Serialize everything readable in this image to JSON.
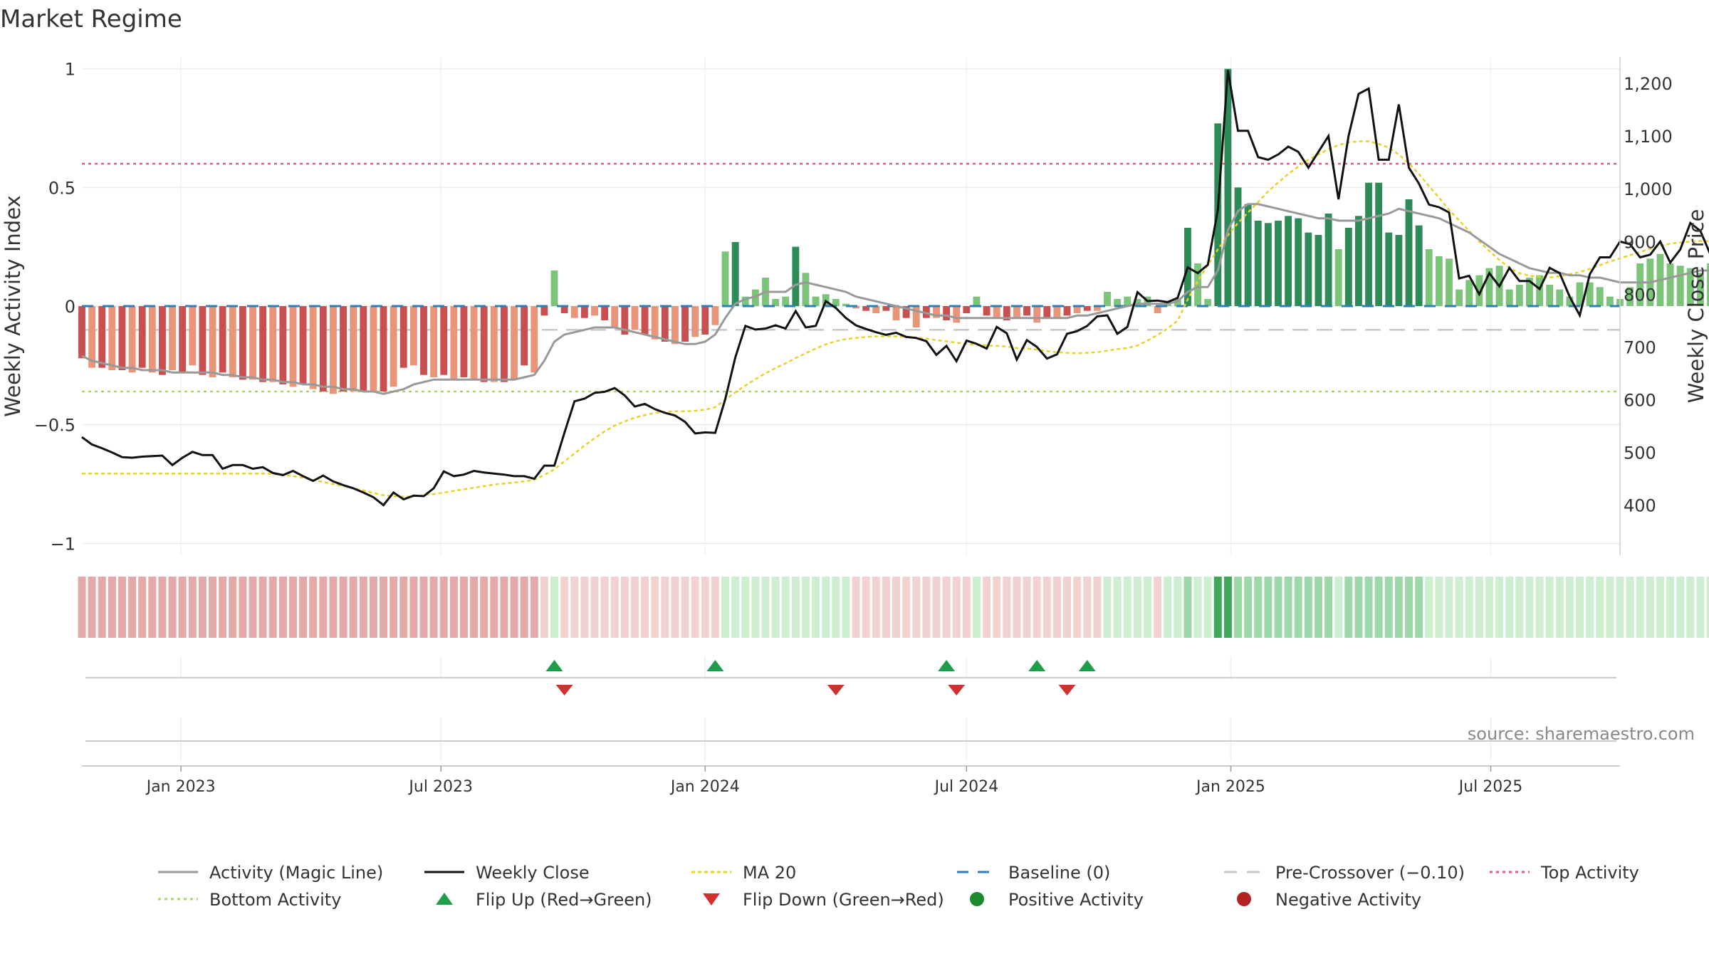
{
  "chart_data": {
    "type": "bar",
    "title": "Market Regime",
    "source": "source: sharemaestro.com",
    "y_left_label": "Weekly Activity Index",
    "y_right_label": "Weekly Close Price",
    "y_left_range": [
      -1.05,
      1.05
    ],
    "y_right_range": [
      305,
      1250
    ],
    "y_left_ticks": [
      {
        "v": 1,
        "t": "1"
      },
      {
        "v": 0.5,
        "t": "0.5"
      },
      {
        "v": 0,
        "t": "0"
      },
      {
        "v": -0.5,
        "t": "−0.5"
      },
      {
        "v": -1,
        "t": "−1"
      }
    ],
    "y_right_ticks": [
      {
        "v": 1200,
        "t": "1,200"
      },
      {
        "v": 1100,
        "t": "1,100"
      },
      {
        "v": 1000,
        "t": "1,000"
      },
      {
        "v": 900,
        "t": "900"
      },
      {
        "v": 800,
        "t": "800"
      },
      {
        "v": 700,
        "t": "700"
      },
      {
        "v": 600,
        "t": "600"
      },
      {
        "v": 500,
        "t": "500"
      },
      {
        "v": 400,
        "t": "400"
      }
    ],
    "x_range": [
      "2022-10-24",
      "2025-09-29"
    ],
    "x_ticks": [
      {
        "date": "2023-01-01",
        "label": "Jan 2023"
      },
      {
        "date": "2023-07-01",
        "label": "Jul 2023"
      },
      {
        "date": "2024-01-01",
        "label": "Jan 2024"
      },
      {
        "date": "2024-07-01",
        "label": "Jul 2024"
      },
      {
        "date": "2025-01-01",
        "label": "Jan 2025"
      },
      {
        "date": "2025-07-01",
        "label": "Jul 2025"
      }
    ],
    "start_date": "2022-10-24",
    "weekly_activity": [
      -0.22,
      -0.26,
      -0.26,
      -0.27,
      -0.27,
      -0.28,
      -0.26,
      -0.28,
      -0.29,
      -0.27,
      -0.28,
      -0.25,
      -0.29,
      -0.3,
      -0.28,
      -0.3,
      -0.31,
      -0.31,
      -0.32,
      -0.32,
      -0.33,
      -0.34,
      -0.33,
      -0.35,
      -0.36,
      -0.37,
      -0.36,
      -0.36,
      -0.36,
      -0.36,
      -0.36,
      -0.34,
      -0.26,
      -0.25,
      -0.29,
      -0.3,
      -0.29,
      -0.31,
      -0.3,
      -0.31,
      -0.32,
      -0.32,
      -0.32,
      -0.31,
      -0.25,
      -0.28,
      -0.04,
      0.15,
      -0.03,
      -0.05,
      -0.05,
      -0.04,
      -0.06,
      -0.09,
      -0.12,
      -0.1,
      -0.12,
      -0.14,
      -0.15,
      -0.16,
      -0.15,
      -0.13,
      -0.12,
      -0.08,
      0.23,
      0.27,
      0.04,
      0.07,
      0.12,
      0.03,
      0.04,
      0.25,
      0.14,
      0.04,
      0.05,
      0.03,
      0.01,
      -0.01,
      -0.02,
      -0.03,
      -0.02,
      -0.06,
      -0.05,
      -0.09,
      -0.05,
      -0.05,
      -0.06,
      -0.07,
      -0.03,
      0.04,
      -0.04,
      -0.05,
      -0.06,
      -0.05,
      -0.04,
      -0.07,
      -0.05,
      -0.05,
      -0.04,
      -0.03,
      -0.02,
      -0.02,
      0.06,
      0.03,
      0.04,
      0.03,
      0.04,
      -0.03,
      0.02,
      0.03,
      0.33,
      0.18,
      0.03,
      0.77,
      1.0,
      0.5,
      0.43,
      0.36,
      0.35,
      0.36,
      0.38,
      0.37,
      0.31,
      0.3,
      0.39,
      0.24,
      0.33,
      0.38,
      0.52,
      0.52,
      0.31,
      0.3,
      0.45,
      0.34,
      0.24,
      0.21,
      0.2,
      0.07,
      0.11,
      0.13,
      0.16,
      0.17,
      0.07,
      0.09,
      0.12,
      0.13,
      0.09,
      0.07,
      0.04,
      0.1,
      0.1,
      0.08,
      0.04,
      0.03,
      0.08,
      0.18,
      0.2,
      0.22,
      0.18,
      0.17,
      0.16,
      0.14,
      0.18,
      0.31,
      0.24,
      0.14,
      0.12,
      0.11,
      0.17,
      0.12,
      0.11,
      0.11
    ],
    "weekly_close": [
      529,
      515,
      508,
      500,
      491,
      490,
      492,
      493,
      494,
      476,
      490,
      501,
      495,
      495,
      469,
      476,
      476,
      469,
      472,
      461,
      457,
      465,
      455,
      446,
      456,
      445,
      438,
      432,
      424,
      415,
      400,
      424,
      411,
      418,
      417,
      432,
      464,
      455,
      458,
      465,
      462,
      460,
      458,
      455,
      455,
      450,
      475,
      475,
      537,
      597,
      602,
      613,
      615,
      622,
      608,
      587,
      592,
      582,
      575,
      570,
      558,
      536,
      538,
      537,
      601,
      680,
      740,
      733,
      735,
      741,
      735,
      768,
      737,
      740,
      787,
      774,
      755,
      741,
      734,
      728,
      723,
      727,
      719,
      717,
      711,
      685,
      702,
      673,
      712,
      706,
      697,
      738,
      726,
      676,
      713,
      700,
      678,
      686,
      725,
      730,
      740,
      758,
      760,
      725,
      738,
      804,
      787,
      788,
      785,
      793,
      851,
      840,
      856,
      960,
      1225,
      1110,
      1110,
      1060,
      1055,
      1065,
      1080,
      1070,
      1040,
      1070,
      1100,
      980,
      1100,
      1180,
      1190,
      1055,
      1055,
      1160,
      1040,
      1010,
      970,
      965,
      955,
      830,
      835,
      800,
      840,
      815,
      850,
      825,
      825,
      810,
      850,
      840,
      795,
      760,
      838,
      870,
      870,
      900,
      895,
      870,
      875,
      900,
      860,
      885,
      935,
      920,
      875,
      870,
      890,
      870,
      880,
      870,
      870
    ],
    "magic_line": [
      -0.21,
      -0.23,
      -0.24,
      -0.25,
      -0.26,
      -0.26,
      -0.27,
      -0.27,
      -0.27,
      -0.28,
      -0.28,
      -0.28,
      -0.28,
      -0.28,
      -0.29,
      -0.29,
      -0.3,
      -0.3,
      -0.31,
      -0.31,
      -0.32,
      -0.32,
      -0.33,
      -0.33,
      -0.34,
      -0.34,
      -0.35,
      -0.35,
      -0.36,
      -0.36,
      -0.37,
      -0.36,
      -0.35,
      -0.33,
      -0.32,
      -0.31,
      -0.31,
      -0.31,
      -0.31,
      -0.31,
      -0.31,
      -0.31,
      -0.31,
      -0.31,
      -0.3,
      -0.29,
      -0.23,
      -0.15,
      -0.12,
      -0.11,
      -0.1,
      -0.09,
      -0.09,
      -0.09,
      -0.1,
      -0.11,
      -0.12,
      -0.13,
      -0.14,
      -0.15,
      -0.16,
      -0.16,
      -0.15,
      -0.12,
      -0.05,
      0.01,
      0.03,
      0.04,
      0.06,
      0.06,
      0.06,
      0.09,
      0.1,
      0.09,
      0.08,
      0.07,
      0.06,
      0.04,
      0.03,
      0.02,
      0.01,
      0.0,
      -0.01,
      -0.02,
      -0.03,
      -0.04,
      -0.04,
      -0.05,
      -0.05,
      -0.05,
      -0.05,
      -0.05,
      -0.05,
      -0.05,
      -0.05,
      -0.05,
      -0.05,
      -0.05,
      -0.05,
      -0.04,
      -0.04,
      -0.03,
      -0.02,
      -0.01,
      0.0,
      0.01,
      0.01,
      0.01,
      0.01,
      0.02,
      0.06,
      0.08,
      0.08,
      0.15,
      0.32,
      0.4,
      0.43,
      0.43,
      0.42,
      0.41,
      0.4,
      0.39,
      0.38,
      0.37,
      0.37,
      0.36,
      0.36,
      0.36,
      0.37,
      0.38,
      0.39,
      0.41,
      0.4,
      0.39,
      0.38,
      0.37,
      0.35,
      0.33,
      0.31,
      0.28,
      0.25,
      0.22,
      0.2,
      0.18,
      0.16,
      0.15,
      0.14,
      0.14,
      0.13,
      0.13,
      0.12,
      0.12,
      0.11,
      0.1,
      0.1,
      0.1,
      0.1,
      0.11,
      0.12,
      0.13,
      0.14,
      0.15,
      0.15,
      0.16,
      0.16,
      0.17,
      0.17,
      0.17,
      0.17,
      0.16,
      0.15,
      0.15,
      0.14,
      0.14
    ],
    "ma20": [
      460,
      460,
      460,
      460,
      460,
      460,
      460,
      460,
      460,
      460,
      460,
      460,
      460,
      460,
      460,
      460,
      460,
      460,
      460,
      459,
      457,
      455,
      452,
      448,
      444,
      440,
      436,
      432,
      428,
      423,
      419,
      417,
      416,
      417,
      419,
      421,
      424,
      427,
      430,
      433,
      436,
      439,
      441,
      443,
      445,
      448,
      457,
      468,
      483,
      498,
      513,
      527,
      540,
      551,
      559,
      566,
      571,
      575,
      577,
      578,
      578,
      579,
      581,
      586,
      600,
      614,
      627,
      639,
      650,
      660,
      669,
      679,
      688,
      697,
      705,
      711,
      715,
      717,
      719,
      720,
      720,
      720,
      719,
      718,
      716,
      713,
      711,
      708,
      706,
      704,
      703,
      702,
      701,
      698,
      697,
      695,
      692,
      690,
      689,
      688,
      689,
      690,
      693,
      696,
      698,
      703,
      712,
      723,
      735,
      750,
      790,
      825,
      855,
      885,
      912,
      935,
      955,
      975,
      995,
      1012,
      1028,
      1042,
      1055,
      1065,
      1075,
      1083,
      1088,
      1090,
      1090,
      1085,
      1078,
      1065,
      1048,
      1028,
      1005,
      983,
      960,
      940,
      920,
      900,
      882,
      865,
      850,
      840,
      835,
      833,
      832,
      834,
      838,
      842,
      848,
      855,
      862,
      868,
      874,
      880,
      886,
      892,
      896,
      898,
      900,
      901,
      900,
      899,
      897,
      895
    ]
  },
  "flip_up_weeks": [
    47,
    63,
    86,
    95,
    100
  ],
  "flip_down_weeks": [
    48,
    75,
    87,
    98
  ],
  "lines": {
    "top_activity": 0.6,
    "bottom_activity": -0.36,
    "pre_crossover": -0.1,
    "baseline": 0
  },
  "legend": [
    {
      "key": "magic",
      "label": "Activity (Magic Line)"
    },
    {
      "key": "close",
      "label": "Weekly Close"
    },
    {
      "key": "ma20",
      "label": "MA 20"
    },
    {
      "key": "baseline",
      "label": "Baseline (0)"
    },
    {
      "key": "precross",
      "label": "Pre-Crossover (−0.10)"
    },
    {
      "key": "top",
      "label": "Top Activity"
    },
    {
      "key": "bottom",
      "label": "Bottom Activity"
    },
    {
      "key": "flipup",
      "label": "Flip Up (Red→Green)"
    },
    {
      "key": "flipdown",
      "label": "Flip Down (Green→Red)"
    },
    {
      "key": "pos",
      "label": "Positive Activity"
    },
    {
      "key": "neg",
      "label": "Negative Activity"
    }
  ],
  "colors": {
    "neg_dark": "#c95050",
    "neg_light": "#e8957a",
    "pos_dark": "#2e8b57",
    "pos_light": "#7cc47a",
    "strip_neg_strong": "#e4aaaa",
    "strip_neg_soft": "#f2d1d1",
    "strip_pos_soft": "#cdeed1",
    "strip_pos_mid": "#9fd8a8",
    "strip_pos_strong": "#3fa75a",
    "magic_line": "#999999",
    "close_line": "#111111",
    "ma20_line": "#e8d227",
    "baseline": "#2c7fb8",
    "pre_crossover": "#c8c8c8",
    "top_activity": "#d9607a",
    "bottom_activity": "#a9d86a",
    "flip_up": "#1e9e4a",
    "flip_down": "#d32f2f",
    "pos_dot": "#1a8a2a",
    "neg_dot": "#b22222"
  }
}
